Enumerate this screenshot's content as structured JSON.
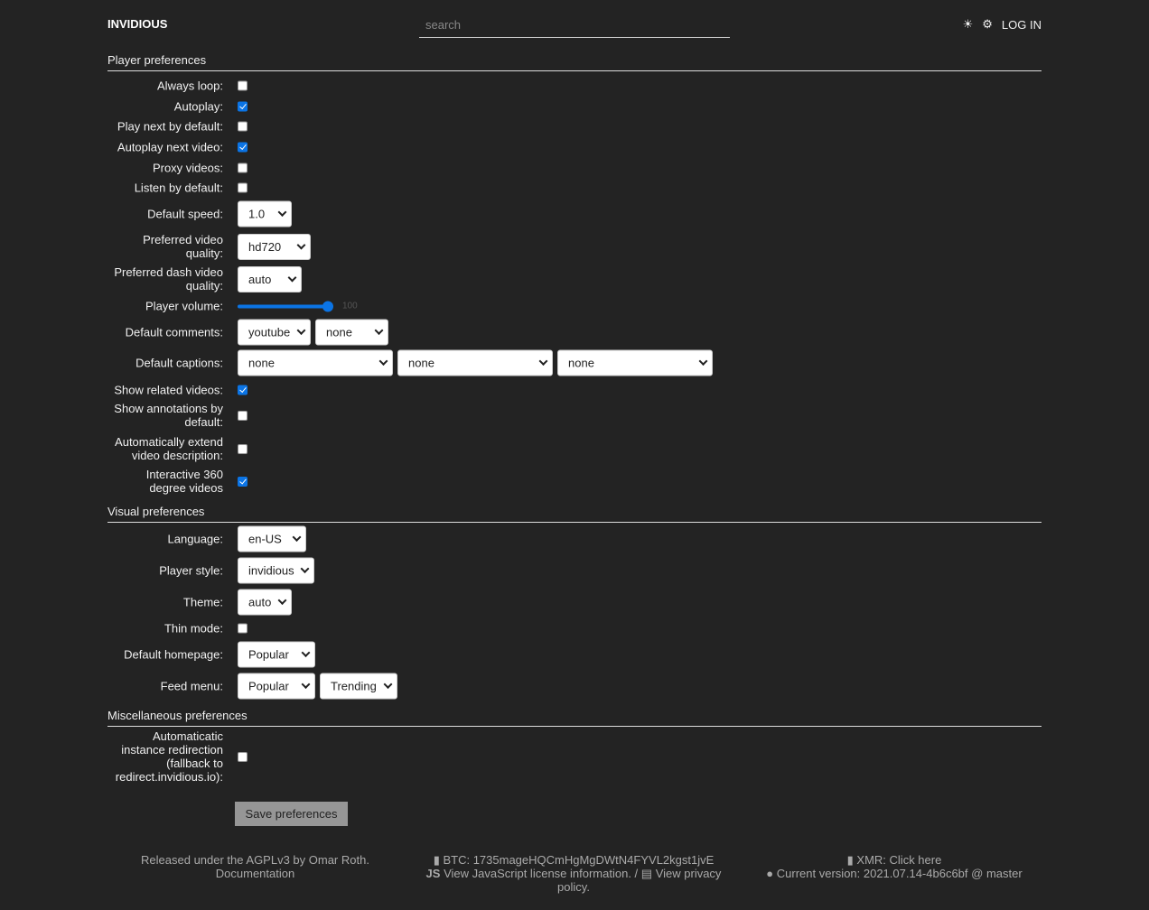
{
  "header": {
    "brand": "INVIDIOUS",
    "search_placeholder": "search",
    "theme_icon": "sun-icon",
    "prefs_icon": "gear-icon",
    "login": "LOG IN"
  },
  "sections": {
    "player": "Player preferences",
    "visual": "Visual preferences",
    "misc": "Miscellaneous preferences"
  },
  "rows": [
    {
      "label": "Always loop:",
      "type": "checkbox",
      "checked": false
    },
    {
      "label": "Autoplay:",
      "type": "checkbox",
      "checked": true
    },
    {
      "label": "Play next by default:",
      "type": "checkbox",
      "checked": false
    },
    {
      "label": "Autoplay next video:",
      "type": "checkbox",
      "checked": true
    },
    {
      "label": "Proxy videos:",
      "type": "checkbox",
      "checked": false
    },
    {
      "label": "Listen by default:",
      "type": "checkbox",
      "checked": false
    },
    {
      "label": "Default speed:",
      "type": "select",
      "values": [
        "1.0"
      ]
    },
    {
      "label": "Preferred video quality:",
      "type": "select",
      "values": [
        "hd720"
      ]
    },
    {
      "label": "Preferred dash video quality:",
      "type": "select",
      "values": [
        "auto"
      ]
    },
    {
      "label": "Player volume:",
      "type": "slider",
      "value": "100",
      "percent": 100
    },
    {
      "label": "Default comments:",
      "type": "select",
      "values": [
        "youtube",
        "none"
      ]
    },
    {
      "label": "Default captions:",
      "type": "select",
      "values": [
        "none",
        "none",
        "none"
      ]
    },
    {
      "label": "Show related videos:",
      "type": "checkbox",
      "checked": true
    },
    {
      "label": "Show annotations by default:",
      "type": "checkbox",
      "checked": false
    },
    {
      "label": "Automatically extend video description:",
      "type": "checkbox",
      "checked": false
    },
    {
      "label": "Interactive 360 degree videos",
      "type": "checkbox",
      "checked": true
    },
    {
      "label": "Language:",
      "type": "select",
      "values": [
        "en-US"
      ]
    },
    {
      "label": "Player style:",
      "type": "select",
      "values": [
        "invidious"
      ]
    },
    {
      "label": "Theme:",
      "type": "select",
      "values": [
        "auto"
      ]
    },
    {
      "label": "Thin mode:",
      "type": "checkbox",
      "checked": false
    },
    {
      "label": "Default homepage:",
      "type": "select",
      "values": [
        "Popular"
      ]
    },
    {
      "label": "Feed menu:",
      "type": "select",
      "values": [
        "Popular",
        "Trending"
      ]
    },
    {
      "label": "Automaticatic instance redirection (fallback to redirect.invidious.io):",
      "type": "checkbox",
      "checked": false
    }
  ],
  "save": "Save preferences",
  "footer": {
    "license": "Released under the AGPLv3 by Omar Roth.",
    "docs": "Documentation",
    "btc": "BTC: 1735mageHQCmHgMgDWtN4FYVL2kgst1jvE",
    "js_icon": "JS",
    "js_license": "View JavaScript license information.",
    "privacy": "View privacy policy.",
    "xmr": "XMR: Click here",
    "version": "Current version: 2021.07.14-4b6c6bf @ master"
  }
}
